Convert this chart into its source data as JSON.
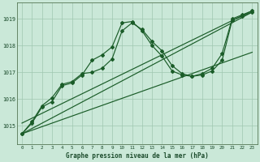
{
  "bg_color": "#cae8d8",
  "grid_color": "#a0c8b0",
  "line_color": "#1a5c28",
  "xlim": [
    -0.5,
    23.5
  ],
  "ylim": [
    1014.3,
    1019.6
  ],
  "xlabel": "Graphe pression niveau de la mer (hPa)",
  "yticks": [
    1015,
    1016,
    1017,
    1018,
    1019
  ],
  "series_curved1": {
    "x": [
      0,
      1,
      2,
      3,
      4,
      5,
      6,
      7,
      8,
      9,
      10,
      11,
      12,
      13,
      14,
      15,
      16,
      17,
      18,
      19,
      20,
      21,
      22,
      23
    ],
    "y": [
      1014.7,
      1015.1,
      1015.7,
      1015.9,
      1016.5,
      1016.6,
      1016.9,
      1017.45,
      1017.65,
      1017.95,
      1018.85,
      1018.9,
      1018.55,
      1018.0,
      1017.6,
      1017.05,
      1016.9,
      1016.85,
      1016.9,
      1017.05,
      1017.45,
      1018.95,
      1019.1,
      1019.25
    ]
  },
  "series_curved2": {
    "x": [
      0,
      1,
      2,
      3,
      4,
      5,
      6,
      7,
      8,
      9,
      10,
      11,
      12,
      13,
      14,
      15,
      16,
      17,
      18,
      19,
      20,
      21,
      22,
      23
    ],
    "y": [
      1014.7,
      1015.15,
      1015.75,
      1016.05,
      1016.55,
      1016.65,
      1016.95,
      1017.0,
      1017.15,
      1017.5,
      1018.55,
      1018.85,
      1018.6,
      1018.15,
      1017.8,
      1017.25,
      1016.95,
      1016.85,
      1016.95,
      1017.15,
      1017.7,
      1019.0,
      1019.15,
      1019.3
    ]
  },
  "series_straight1": {
    "x": [
      0,
      23
    ],
    "y": [
      1014.7,
      1019.25
    ]
  },
  "series_straight2": {
    "x": [
      0,
      23
    ],
    "y": [
      1014.7,
      1017.75
    ]
  },
  "series_straight3": {
    "x": [
      0,
      23
    ],
    "y": [
      1015.1,
      1019.3
    ]
  }
}
